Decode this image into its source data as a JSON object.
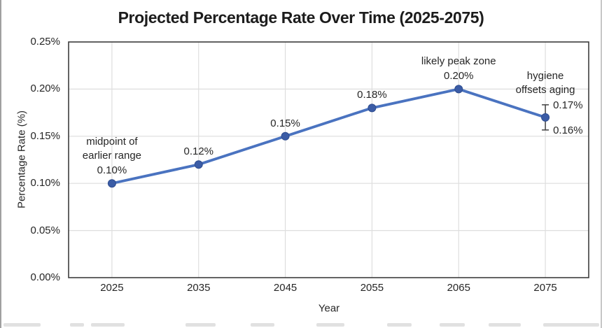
{
  "chart_data": {
    "type": "line",
    "title": "Projected Percentage Rate Over Time (2025-2075)",
    "xlabel": "Year",
    "ylabel": "Percentage Rate (%)",
    "categories": [
      "2025",
      "2035",
      "2045",
      "2055",
      "2065",
      "2075"
    ],
    "values": [
      0.1,
      0.12,
      0.15,
      0.18,
      0.2,
      0.17
    ],
    "point_labels": [
      "0.10%",
      "0.12%",
      "0.15%",
      "0.18%",
      "0.20%",
      ""
    ],
    "ylim": [
      0,
      0.25
    ],
    "ytick_step": 0.05,
    "ytick_labels": [
      "0.00%",
      "0.05%",
      "0.10%",
      "0.15%",
      "0.20%",
      "0.25%"
    ],
    "grid": true,
    "legend": "none",
    "line_color": "#4a73c0",
    "marker_color": "#3b5ca6",
    "grid_color": "#dedede",
    "frame_color": "#3d3d3d",
    "annotations": [
      {
        "name": "annotation-midpoint",
        "anchor_year": "2025",
        "lines": [
          "midpoint of",
          "earlier range"
        ]
      },
      {
        "name": "annotation-peak",
        "anchor_year": "2065",
        "lines": [
          "likely peak zone"
        ]
      },
      {
        "name": "annotation-hygiene",
        "anchor_year": "2075",
        "lines": [
          "hygiene",
          "offsets aging"
        ]
      }
    ],
    "error_bar": {
      "anchor_year": "2075",
      "upper_label": "0.17%",
      "lower_label": "0.16%"
    }
  }
}
